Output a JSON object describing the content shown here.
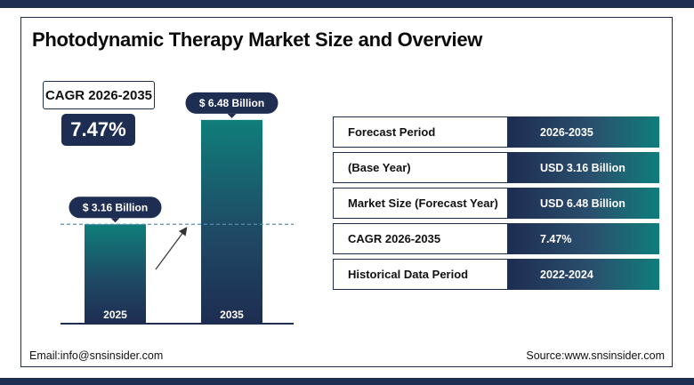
{
  "title": "Photodynamic Therapy Market Size and Overview",
  "cagr_box": {
    "label": "CAGR 2026-2035",
    "value": "7.47%"
  },
  "chart_data": {
    "type": "bar",
    "categories": [
      "2025",
      "2035"
    ],
    "values": [
      3.16,
      6.48
    ],
    "data_labels": [
      "$ 3.16 Billion",
      "$ 6.48 Billion"
    ],
    "title": "",
    "xlabel": "",
    "ylabel": "",
    "ylim": [
      0,
      6.9
    ],
    "grid": false,
    "legend": "none"
  },
  "table": {
    "rows": [
      {
        "label": "Forecast Period",
        "value": "2026-2035"
      },
      {
        "label": "(Base Year)",
        "value": "USD 3.16 Billion"
      },
      {
        "label": "Market Size (Forecast Year)",
        "value": "USD 6.48 Billion"
      },
      {
        "label": "CAGR 2026-2035",
        "value": "7.47%"
      },
      {
        "label": "Historical Data Period",
        "value": "2022-2024"
      }
    ]
  },
  "footer": {
    "email": "Email:info@snsinsider.com",
    "source": "Source:www.snsinsider.com"
  },
  "colors": {
    "navy": "#1e2d52",
    "teal": "#0f7e7a",
    "dashed_line": "#5b8fb0"
  }
}
